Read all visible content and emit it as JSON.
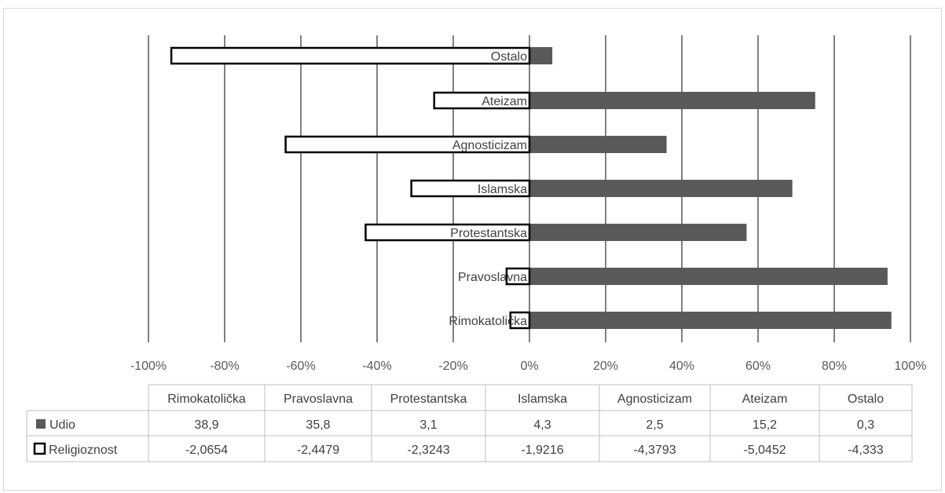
{
  "chart_data": {
    "type": "bar",
    "orientation": "horizontal",
    "stacked": true,
    "categories": [
      "Rimokatolička",
      "Pravoslavna",
      "Protestantska",
      "Islamska",
      "Agnosticizam",
      "Ateizam",
      "Ostalo"
    ],
    "series": [
      {
        "name": "Udio",
        "table_values": [
          "38,9",
          "35,8",
          "3,1",
          "4,3",
          "2,5",
          "15,2",
          "0,3"
        ],
        "plotted_percent": [
          95,
          94,
          57,
          69,
          36,
          75,
          6
        ],
        "color": "#595959"
      },
      {
        "name": "Religioznost",
        "table_values": [
          "-2,0654",
          "-2,4479",
          "-2,3243",
          "-1,9216",
          "-4,3793",
          "-5,0452",
          "-4,333"
        ],
        "plotted_percent": [
          -5,
          -6,
          -43,
          -31,
          -64,
          -25,
          -94
        ],
        "color": "#ffffff",
        "border": "#000000"
      }
    ],
    "xaxis_ticks": [
      "-100%",
      "-80%",
      "-60%",
      "-40%",
      "-20%",
      "0%",
      "20%",
      "40%",
      "60%",
      "80%",
      "100%"
    ],
    "xlim": [
      -100,
      100
    ],
    "grid": true,
    "legend": "data-table"
  }
}
